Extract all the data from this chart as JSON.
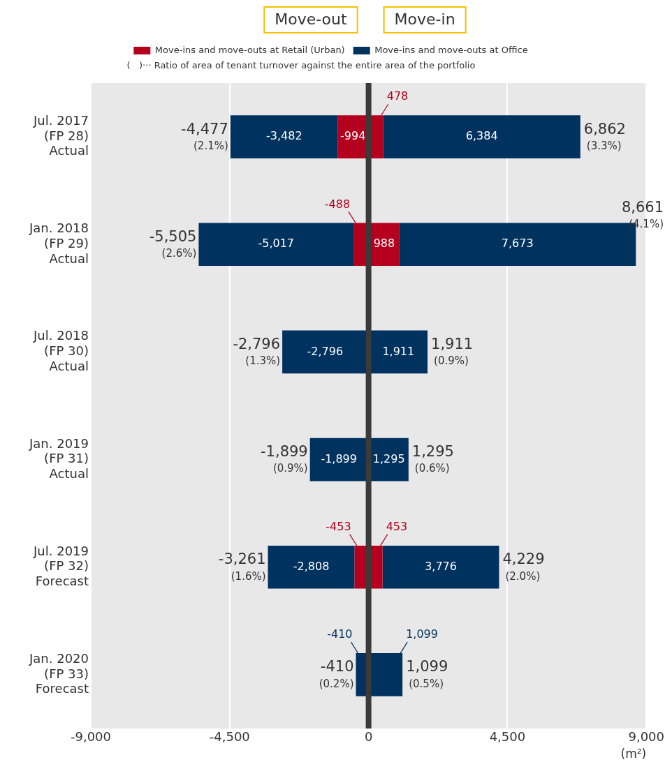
{
  "chart_data": {
    "type": "bar",
    "orientation": "horizontal",
    "stacked": true,
    "categories": [
      "Jul. 2017\n(FP 28)\nActual",
      "Jan. 2018\n(FP 29)\nActual",
      "Jul. 2018\n(FP 30)\nActual",
      "Jan. 2019\n(FP 31)\nActual",
      "Jul. 2019\n(FP 32)\nForecast",
      "Jan. 2020\n(FP 33)\nForecast"
    ],
    "series": [
      {
        "name": "Move-ins and move-outs at Retail (Urban)",
        "color": "#b4001e",
        "values": [
          -994,
          -488,
          null,
          null,
          -453,
          null
        ],
        "value_labels": [
          "-994",
          "-488",
          null,
          null,
          "-453",
          null
        ]
      },
      {
        "name": "Move-ins and move-outs at Office",
        "color": "#00325f",
        "values": [
          -3482,
          -5017,
          -2796,
          -1899,
          -2808,
          -410
        ],
        "value_labels": [
          "-3,482",
          "-5,017",
          "-2,796",
          "-1,899",
          "-2,808",
          "-410"
        ]
      },
      {
        "color": "#b4001e",
        "values": [
          478,
          988,
          null,
          null,
          453,
          null
        ],
        "value_labels": [
          "478",
          "988",
          null,
          null,
          "453",
          null
        ]
      },
      {
        "color": "#00325f",
        "values": [
          6384,
          7673,
          1911,
          1295,
          3776,
          1099
        ],
        "value_labels": [
          "6,384",
          "7,673",
          "1,911",
          "1,295",
          "3,776",
          "1,099"
        ]
      }
    ],
    "xlim": [
      -9000,
      9000
    ],
    "xticks": [
      {
        "value": -9000,
        "label": "-9,000"
      },
      {
        "value": -4500,
        "label": "-4,500"
      },
      0,
      {
        "value": 4500,
        "label": "4,500"
      },
      {
        "value": 9000,
        "label": "9,000"
      }
    ],
    "xlabel": "(m²)",
    "grid": "x",
    "legend": "top",
    "ref_lines": [
      {
        "axis": "x",
        "value": 0,
        "color": "#3a3a3a"
      }
    ],
    "annotations": [
      "Move-out",
      "Move-in",
      "(   )··· Ratio of area of tenant turnover against the entire area of the portfolio",
      {
        "text": "-4,477",
        "x": -4477,
        "y": "Jul. 2017\n(FP 28)\nActual"
      },
      {
        "text": "(2.1%)",
        "x": -4477,
        "y": "Jul. 2017\n(FP 28)\nActual"
      },
      {
        "text": "6,862",
        "x": 6862,
        "y": "Jul. 2017\n(FP 28)\nActual"
      },
      {
        "text": "(3.3%)",
        "x": 6862,
        "y": "Jul. 2017\n(FP 28)\nActual"
      },
      {
        "text": "-5,505",
        "x": -5505,
        "y": "Jan. 2018\n(FP 29)\nActual"
      },
      {
        "text": "(2.6%)",
        "x": -5505,
        "y": "Jan. 2018\n(FP 29)\nActual"
      },
      {
        "text": "8,661",
        "x": 8661,
        "y": "Jan. 2018\n(FP 29)\nActual"
      },
      {
        "text": "(4.1%)",
        "x": 8661,
        "y": "Jan. 2018\n(FP 29)\nActual"
      },
      {
        "text": "-2,796",
        "x": -2796,
        "y": "Jul. 2018\n(FP 30)\nActual"
      },
      {
        "text": "(1.3%)",
        "x": -2796,
        "y": "Jul. 2018\n(FP 30)\nActual"
      },
      {
        "text": "1,911",
        "x": 1911,
        "y": "Jul. 2018\n(FP 30)\nActual"
      },
      {
        "text": "(0.9%)",
        "x": 1911,
        "y": "Jul. 2018\n(FP 30)\nActual"
      },
      {
        "text": "-1,899",
        "x": -1899,
        "y": "Jan. 2019\n(FP 31)\nActual"
      },
      {
        "text": "(0.9%)",
        "x": -1899,
        "y": "Jan. 2019\n(FP 31)\nActual"
      },
      {
        "text": "1,295",
        "x": 1295,
        "y": "Jan. 2019\n(FP 31)\nActual"
      },
      {
        "text": "(0.6%)",
        "x": 1295,
        "y": "Jan. 2019\n(FP 31)\nActual"
      },
      {
        "text": "-3,261",
        "x": -3261,
        "y": "Jul. 2019\n(FP 32)\nForecast"
      },
      {
        "text": "(1.6%)",
        "x": -3261,
        "y": "Jul. 2019\n(FP 32)\nForecast"
      },
      {
        "text": "4,229",
        "x": 4229,
        "y": "Jul. 2019\n(FP 32)\nForecast"
      },
      {
        "text": "(2.0%)",
        "x": 4229,
        "y": "Jul. 2019\n(FP 32)\nForecast"
      },
      {
        "text": "-410",
        "x": -410,
        "y": "Jan. 2020\n(FP 33)\nForecast"
      },
      {
        "text": "(0.2%)",
        "x": -410,
        "y": "Jan. 2020\n(FP 33)\nForecast"
      },
      {
        "text": "1,099",
        "x": 1099,
        "y": "Jan. 2020\n(FP 33)\nForecast"
      },
      {
        "text": "(0.5%)",
        "x": 1099,
        "y": "Jan. 2020\n(FP 33)\nForecast"
      }
    ]
  }
}
